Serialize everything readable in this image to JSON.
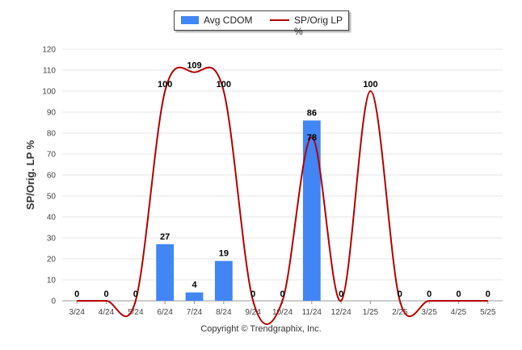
{
  "chart_data": {
    "type": "bar",
    "categories": [
      "3/24",
      "4/24",
      "5/24",
      "6/24",
      "7/24",
      "8/24",
      "9/24",
      "10/24",
      "11/24",
      "12/24",
      "1/25",
      "2/25",
      "3/25",
      "4/25",
      "5/25"
    ],
    "series": [
      {
        "name": "Avg CDOM",
        "type": "bar",
        "color": "#4285f4",
        "values": [
          0,
          0,
          0,
          27,
          4,
          19,
          0,
          0,
          86,
          0,
          0,
          0,
          0,
          0,
          0
        ]
      },
      {
        "name": "SP/Orig LP %",
        "type": "line",
        "color": "#b30000",
        "values": [
          0,
          0,
          0,
          100,
          109,
          100,
          0,
          0,
          78,
          0,
          100,
          0,
          0,
          0,
          0
        ]
      }
    ],
    "ylabel": "SP/Orig. LP %",
    "ylim": [
      0,
      120
    ],
    "yticks": [
      0,
      10,
      20,
      30,
      40,
      50,
      60,
      70,
      80,
      90,
      100,
      110,
      120
    ],
    "grid": true,
    "legend_position": "top"
  },
  "legend": {
    "bar_label": "Avg CDOM",
    "line_label": "SP/Orig LP %"
  },
  "footer": {
    "copyright": "Copyright © Trendgraphix, Inc."
  }
}
